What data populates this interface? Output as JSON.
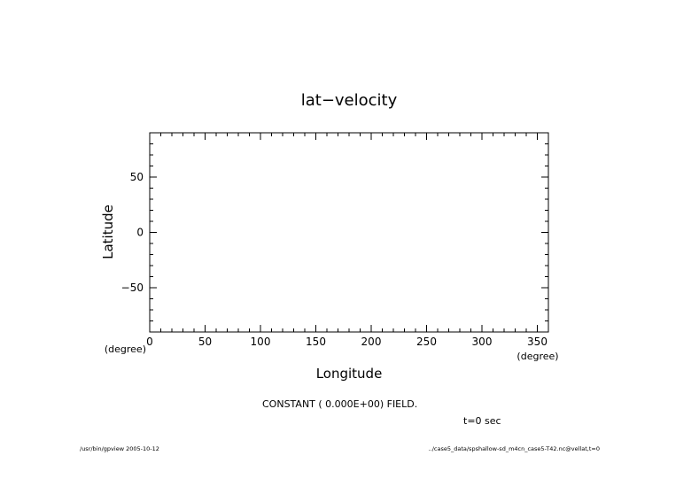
{
  "chart_data": {
    "type": "line",
    "title": "lat−velocity",
    "xlabel": "Longitude",
    "ylabel": "Latitude",
    "x_unit": "(degree)",
    "y_unit": "(degree)",
    "xlim": [
      0,
      360
    ],
    "ylim": [
      -90,
      90
    ],
    "x_ticks": [
      0,
      50,
      100,
      150,
      200,
      250,
      300,
      350
    ],
    "x_minor_step": 10,
    "y_ticks": [
      -50,
      0,
      50
    ],
    "y_tick_labels": [
      "−50",
      "0",
      "50"
    ],
    "y_minor_step": 10,
    "grid": false,
    "series": []
  },
  "annotations": {
    "field_message": "CONSTANT ( 0.000E+00) FIELD.",
    "time_label": "t=0 sec",
    "footer_left": "/usr/bin/gpview  2005-10-12",
    "footer_right": "../case5_data/spshallow-sd_m4cn_case5-T42.nc@vellat,t=0"
  }
}
